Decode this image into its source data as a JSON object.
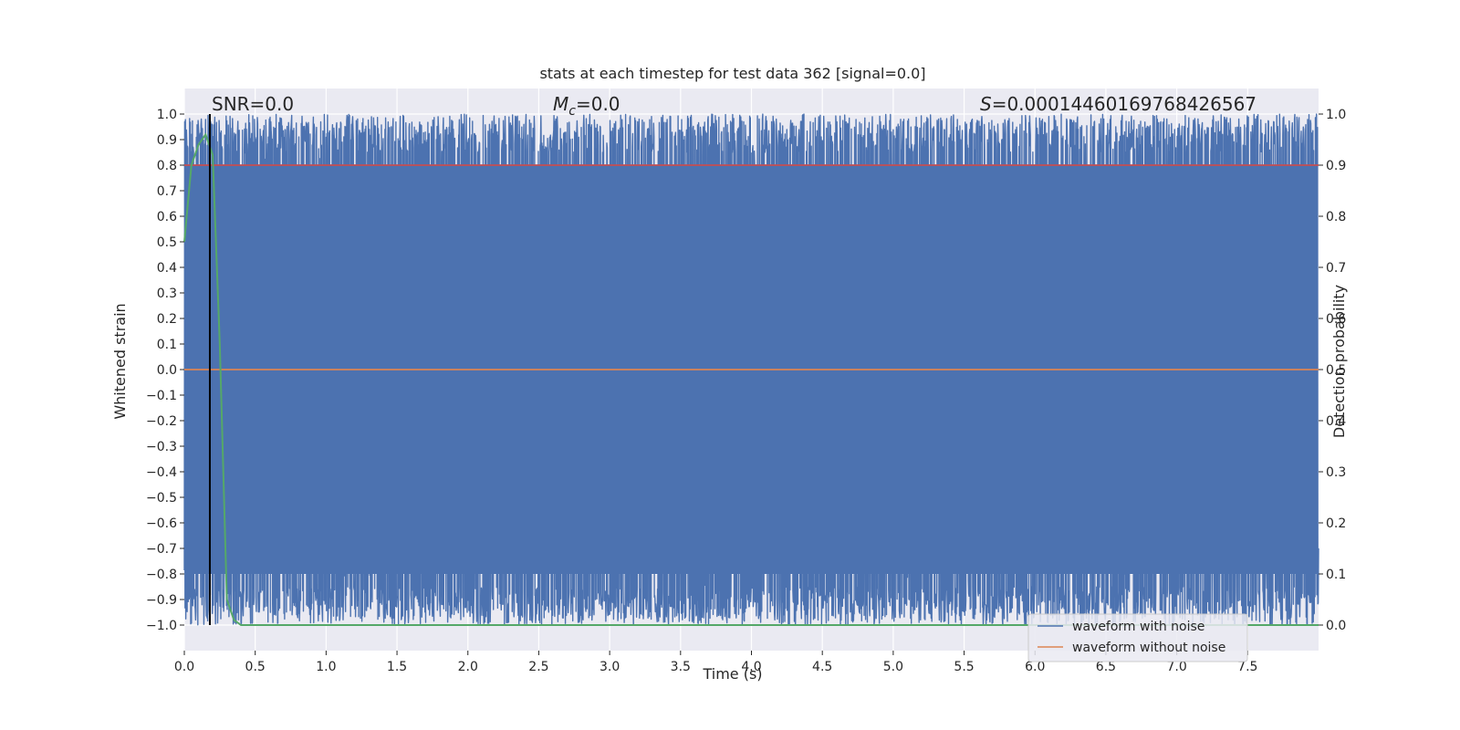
{
  "chart_data": {
    "type": "line",
    "title": "stats at each timestep for test data 362 [signal=0.0]",
    "xlabel": "Time (s)",
    "ylabel_left": "Whitened strain",
    "ylabel_right": "Detection probability",
    "xlim": [
      0.0,
      8.0
    ],
    "ylim_left": [
      -1.1,
      1.1
    ],
    "ylim_right": [
      -0.05,
      1.05
    ],
    "x_ticks": [
      "0.0",
      "0.5",
      "1.0",
      "1.5",
      "2.0",
      "2.5",
      "3.0",
      "3.5",
      "4.0",
      "4.5",
      "5.0",
      "5.5",
      "6.0",
      "6.5",
      "7.0",
      "7.5"
    ],
    "y_ticks_left": [
      "1.0",
      "0.9",
      "0.8",
      "0.7",
      "0.6",
      "0.5",
      "0.4",
      "0.3",
      "0.2",
      "0.1",
      "0.0",
      "−0.1",
      "−0.2",
      "−0.3",
      "−0.4",
      "−0.5",
      "−0.6",
      "−0.7",
      "−0.8",
      "−0.9",
      "−1.0"
    ],
    "y_ticks_right": [
      "1.0",
      "0.9",
      "0.8",
      "0.7",
      "0.6",
      "0.5",
      "0.4",
      "0.3",
      "0.2",
      "0.1",
      "0.0"
    ],
    "grid": true,
    "legend_position": "lower-right",
    "annotations": {
      "snr": "SNR=0.0",
      "mc_symbol": "M",
      "mc_sub": "c",
      "mc_value": "=0.0",
      "s_symbol": "S",
      "s_value": "=0.00014460169768426567"
    },
    "series": [
      {
        "name": "waveform with noise",
        "axis": "left",
        "color": "#4c72b0",
        "description_range": [
          -1.0,
          1.0
        ]
      },
      {
        "name": "waveform without noise",
        "axis": "left",
        "color": "#dd8452",
        "values_x": [
          0.0,
          8.0
        ],
        "values_y": [
          0.0,
          0.0
        ]
      },
      {
        "name": "",
        "axis": "right",
        "color": "#55a868",
        "values_x": [
          0.0,
          0.05,
          0.1,
          0.15,
          0.2,
          0.25,
          0.3,
          0.35,
          0.4,
          8.0
        ],
        "values_y": [
          0.75,
          0.9,
          0.94,
          0.96,
          0.92,
          0.55,
          0.05,
          0.01,
          0.0,
          0.0
        ]
      },
      {
        "name": "",
        "axis": "right",
        "color": "#c44e52",
        "values_x": [
          0.0,
          8.0
        ],
        "values_y": [
          0.9,
          0.9
        ]
      }
    ],
    "vline_x": 0.18,
    "vline_color": "#000000"
  }
}
